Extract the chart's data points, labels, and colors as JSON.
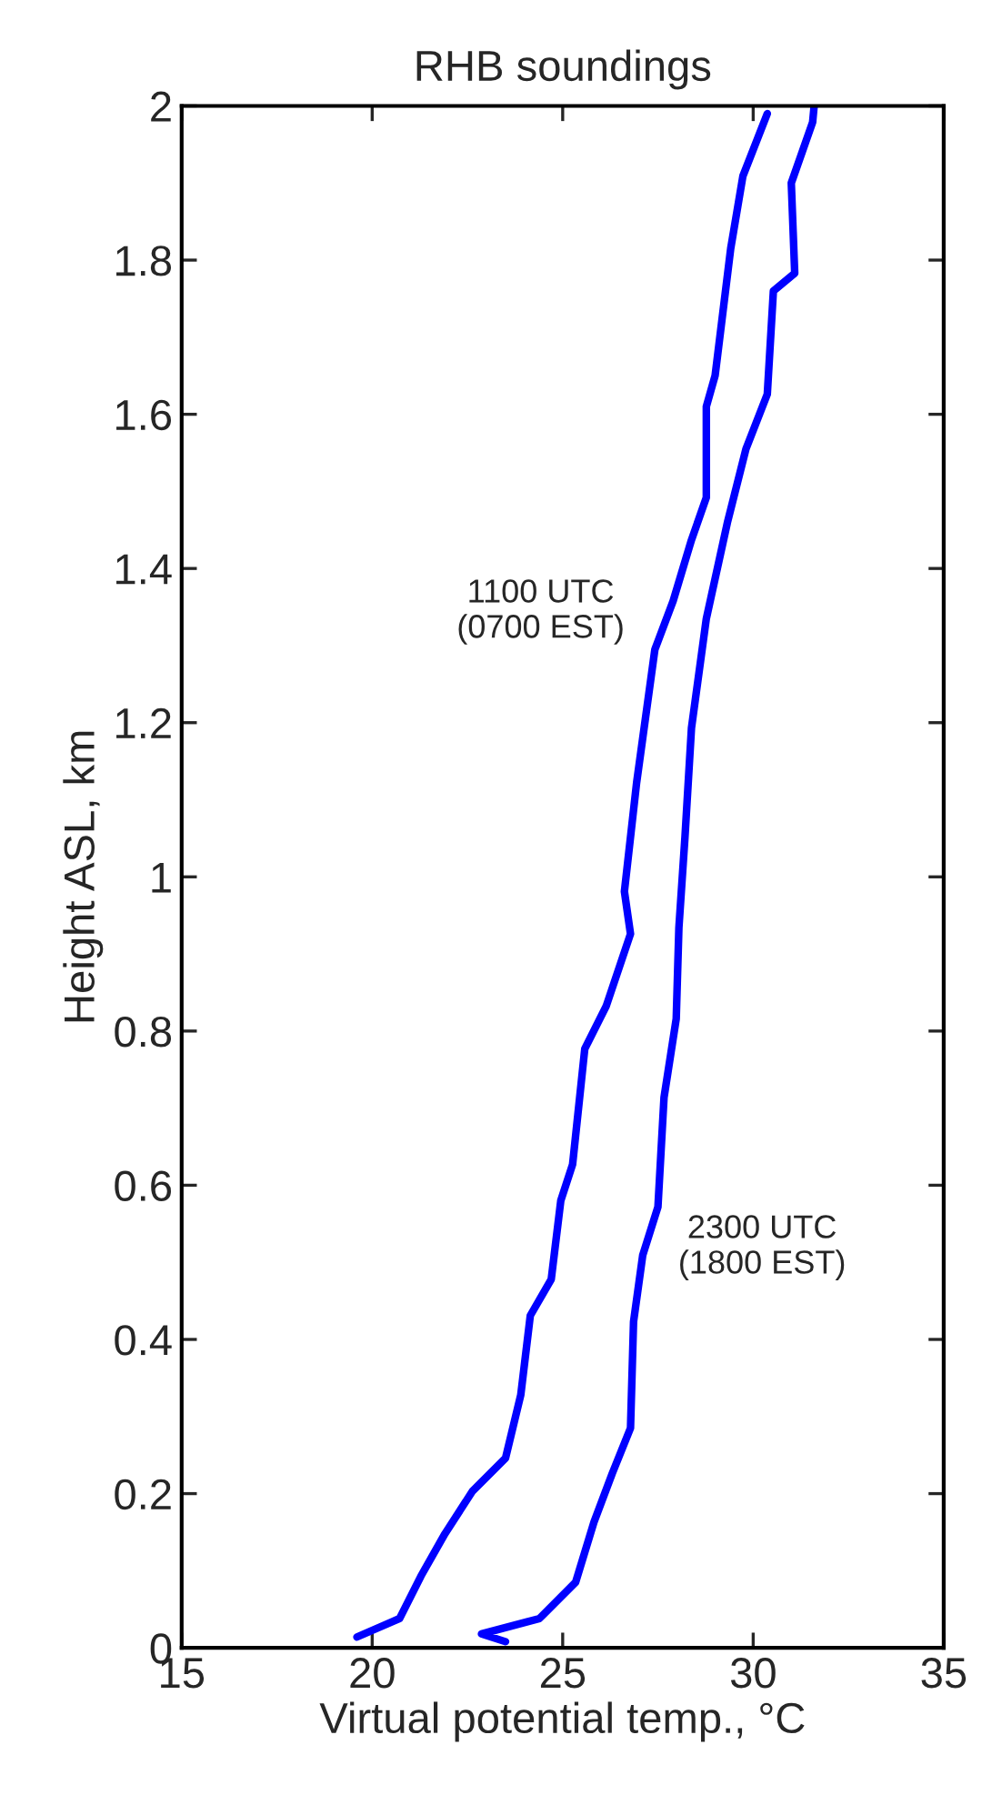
{
  "chart_data": {
    "type": "line",
    "title": "RHB soundings",
    "xlabel": "Virtual potential temp., °C",
    "ylabel": "Height ASL, km",
    "xlim": [
      15,
      35
    ],
    "xticks": [
      15,
      20,
      25,
      30,
      35
    ],
    "ylim": [
      0,
      2
    ],
    "yticks": [
      0,
      0.2,
      0.4,
      0.6,
      0.8,
      1,
      1.2,
      1.4,
      1.6,
      1.8,
      2
    ],
    "grid": false,
    "series": [
      {
        "name": "1100 UTC\n(0700 EST)",
        "color": "#0000ff",
        "x": [
          19.6,
          20.72,
          21.28,
          21.91,
          22.63,
          23.5,
          23.9,
          24.15,
          24.7,
          24.95,
          25.26,
          25.58,
          26.14,
          26.78,
          26.62,
          26.94,
          27.42,
          27.9,
          28.38,
          28.77,
          28.77,
          29.0,
          29.41,
          29.73,
          30.37
        ],
        "values": [
          0.014,
          0.038,
          0.093,
          0.148,
          0.203,
          0.246,
          0.328,
          0.431,
          0.478,
          0.58,
          0.627,
          0.777,
          0.832,
          0.926,
          0.981,
          1.122,
          1.295,
          1.358,
          1.437,
          1.492,
          1.61,
          1.65,
          1.815,
          1.909,
          1.99
        ]
      },
      {
        "name": "2300 UTC\n(1800 EST)",
        "color": "#0000ff",
        "x": [
          23.5,
          22.87,
          24.39,
          25.34,
          25.82,
          26.3,
          26.78,
          26.86,
          27.1,
          27.5,
          27.66,
          27.98,
          28.05,
          28.21,
          28.38,
          28.77,
          29.33,
          29.81,
          30.37,
          30.53,
          31.09,
          31.0,
          31.56,
          31.6
        ],
        "values": [
          0.008,
          0.018,
          0.038,
          0.085,
          0.163,
          0.226,
          0.285,
          0.423,
          0.509,
          0.572,
          0.714,
          0.816,
          0.934,
          1.052,
          1.193,
          1.335,
          1.461,
          1.555,
          1.626,
          1.76,
          1.783,
          1.9,
          1.979,
          2.0
        ]
      }
    ]
  }
}
